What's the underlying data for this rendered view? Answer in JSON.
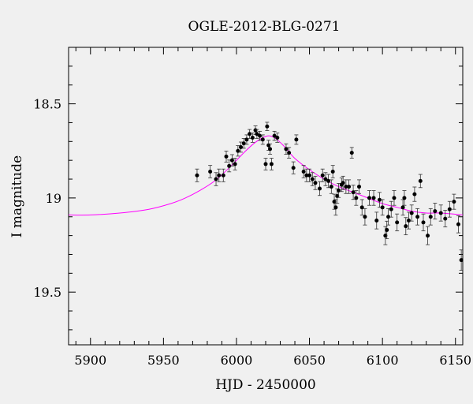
{
  "chart_data": {
    "type": "scatter",
    "title": "OGLE-2012-BLG-0271",
    "xlabel": "HJD - 2450000",
    "ylabel": "I magnitude",
    "xlim": [
      5885,
      6155
    ],
    "ylim": [
      19.78,
      18.2
    ],
    "y_inverted": true,
    "xticks": [
      5900,
      5950,
      6000,
      6050,
      6100,
      6150
    ],
    "yticks": [
      18.5,
      19,
      19.5
    ],
    "xtick_labels": [
      "5900",
      "5950",
      "6000",
      "6050",
      "6100",
      "6150"
    ],
    "ytick_labels": [
      "18.5",
      "19",
      "19.5"
    ],
    "grid": false,
    "colors": {
      "points": "#000000",
      "model": "#ff00ff",
      "background": "#f0f0f0"
    },
    "series": [
      {
        "kind": "points_with_errorbars",
        "x": [
          5973,
          5982,
          5986,
          5988,
          5991,
          5993,
          5995,
          5997,
          5999,
          6001,
          6003,
          6005,
          6007,
          6009,
          6011,
          6013,
          6014,
          6016,
          6018,
          6020,
          6021,
          6022,
          6023,
          6024,
          6026,
          6028,
          6034,
          6036,
          6039,
          6041,
          6046,
          6048,
          6050,
          6052,
          6054,
          6057,
          6059,
          6061,
          6063,
          6065,
          6066,
          6067,
          6068,
          6069,
          6070,
          6072,
          6073,
          6075,
          6077,
          6079,
          6080,
          6082,
          6084,
          6086,
          6088,
          6091,
          6094,
          6096,
          6098,
          6100,
          6102,
          6103,
          6104,
          6106,
          6108,
          6110,
          6114,
          6115,
          6116,
          6118,
          6120,
          6122,
          6124,
          6126,
          6128,
          6131,
          6133,
          6136,
          6140,
          6143,
          6146,
          6149,
          6152,
          6154
        ],
        "y": [
          18.88,
          18.86,
          18.9,
          18.88,
          18.88,
          18.78,
          18.83,
          18.8,
          18.82,
          18.75,
          18.73,
          18.71,
          18.69,
          18.66,
          18.68,
          18.64,
          18.66,
          18.67,
          18.69,
          18.82,
          18.62,
          18.72,
          18.74,
          18.82,
          18.67,
          18.68,
          18.74,
          18.76,
          18.84,
          18.69,
          18.86,
          18.88,
          18.88,
          18.9,
          18.92,
          18.95,
          18.88,
          18.9,
          18.91,
          18.94,
          18.86,
          19.02,
          19.05,
          18.99,
          18.96,
          18.93,
          18.92,
          18.94,
          18.94,
          18.76,
          18.97,
          19.0,
          18.94,
          19.05,
          19.1,
          19.0,
          19.0,
          19.12,
          19.01,
          19.05,
          19.2,
          19.17,
          19.1,
          19.06,
          19.0,
          19.13,
          19.05,
          19.0,
          19.15,
          19.12,
          19.08,
          18.98,
          19.1,
          18.91,
          19.13,
          19.2,
          19.1,
          19.07,
          19.08,
          19.11,
          19.06,
          19.02,
          19.14,
          19.33
        ]
      },
      {
        "kind": "model_curve",
        "name": "",
        "x": [
          5885,
          5900,
          5920,
          5940,
          5955,
          5965,
          5975,
          5985,
          5995,
          6005,
          6012,
          6018,
          6022,
          6026,
          6032,
          6040,
          6050,
          6060,
          6070,
          6080,
          6090,
          6100,
          6110,
          6120,
          6130,
          6140,
          6155
        ],
        "y": [
          19.09,
          19.09,
          19.08,
          19.06,
          19.03,
          19.0,
          18.96,
          18.91,
          18.84,
          18.76,
          18.71,
          18.68,
          18.67,
          18.68,
          18.72,
          18.79,
          18.85,
          18.9,
          18.94,
          18.97,
          19.0,
          19.03,
          19.05,
          19.07,
          19.08,
          19.08,
          19.09
        ]
      }
    ]
  }
}
